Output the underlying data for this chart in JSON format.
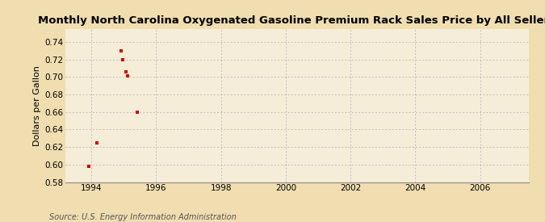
{
  "title": "Monthly North Carolina Oxygenated Gasoline Premium Rack Sales Price by All Sellers",
  "ylabel": "Dollars per Gallon",
  "source": "Source: U.S. Energy Information Administration",
  "outer_bg": "#f0ddb0",
  "inner_bg": "#f5edd8",
  "x_data": [
    1993.92,
    1994.17,
    1994.92,
    1994.96,
    1995.08,
    1995.12,
    1995.42
  ],
  "y_data": [
    0.598,
    0.625,
    0.73,
    0.72,
    0.706,
    0.701,
    0.66
  ],
  "xlim": [
    1993.2,
    2007.5
  ],
  "ylim": [
    0.58,
    0.755
  ],
  "xticks": [
    1994,
    1996,
    1998,
    2000,
    2002,
    2004,
    2006
  ],
  "yticks": [
    0.58,
    0.6,
    0.62,
    0.64,
    0.66,
    0.68,
    0.7,
    0.72,
    0.74
  ],
  "marker_color": "#cc0000",
  "marker": "s",
  "marker_size": 3,
  "grid_color": "#aaaaaa",
  "title_fontsize": 9.5,
  "label_fontsize": 8,
  "tick_fontsize": 7.5,
  "source_fontsize": 7
}
